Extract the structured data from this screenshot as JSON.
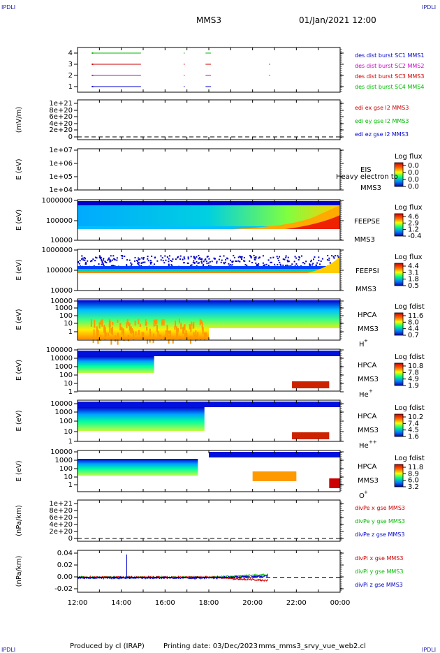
{
  "header": {
    "corner_tl": "IPDLI",
    "corner_tr": "IPDLI",
    "corner_bl": "IPDLI",
    "corner_br": "IPDLI",
    "mission": "MMS3",
    "datetime": "01/Jan/2021 12:00"
  },
  "footer": {
    "produced": "Produced by cl (IRAP)",
    "printing": "Printing date: 03/Dec/2023",
    "script": "mms_mms3_srvy_vue_web2.cl"
  },
  "chart_data": {
    "type": "stacked-timeseries",
    "x_ticks": [
      "12:00",
      "14:00",
      "16:00",
      "18:00",
      "20:00",
      "22:00",
      "00:00"
    ],
    "x_range_hours": [
      12,
      24
    ],
    "panels": [
      {
        "id": "burst",
        "ytick_labels": [
          "4",
          "3",
          "2",
          "1"
        ],
        "legend": [
          {
            "text": "des dist burst SC1 MMS1",
            "color": "#0000cc"
          },
          {
            "text": "des dist burst SC2 MMS2",
            "color": "#cc00cc"
          },
          {
            "text": "des dist burst SC3 MMS3",
            "color": "#cc0000"
          },
          {
            "text": "des dist burst SC4 MMS4",
            "color": "#00bb00"
          }
        ],
        "intervals": [
          {
            "sc": 4,
            "color": "#00bb00",
            "t": [
              [
                12.7,
                14.9
              ],
              [
                16.85,
                16.9
              ],
              [
                17.85,
                18.1
              ]
            ]
          },
          {
            "sc": 3,
            "color": "#cc0000",
            "t": [
              [
                12.7,
                14.9
              ],
              [
                16.85,
                16.9
              ],
              [
                17.85,
                18.1
              ],
              [
                20.75,
                20.8
              ]
            ]
          },
          {
            "sc": 2,
            "color": "#cc00cc",
            "t": [
              [
                12.7,
                14.9
              ],
              [
                16.85,
                16.9
              ],
              [
                17.85,
                18.1
              ],
              [
                20.75,
                20.8
              ]
            ]
          },
          {
            "sc": 1,
            "color": "#0000cc",
            "t": [
              [
                12.7,
                14.9
              ],
              [
                16.85,
                16.9
              ],
              [
                17.85,
                18.1
              ]
            ]
          }
        ]
      },
      {
        "id": "edi",
        "ylabel": "(mV/m)",
        "ytick_labels": [
          "1e+21",
          "8e+20",
          "6e+20",
          "4e+20",
          "2e+20",
          "0"
        ],
        "legend": [
          {
            "text": "edi ex gse l2 MMS3",
            "color": "#cc0000"
          },
          {
            "text": "edi ey gse l2 MMS3",
            "color": "#00bb00"
          },
          {
            "text": "edi ez gse l2 MMS3",
            "color": "#0000cc"
          }
        ]
      },
      {
        "id": "eis",
        "ylabel": "E (eV)",
        "ytick_labels": [
          "1e+07",
          "1e+06",
          "1e+05",
          "1e+04"
        ],
        "name": "EIS",
        "name2": "MMS3",
        "overlay_text": "Heavy electron to",
        "cbar_title": "Log flux",
        "cbar_ticks": [
          "0.0",
          "0.0",
          "0.0",
          "0.0"
        ]
      },
      {
        "id": "feepse",
        "ylabel": "E (eV)",
        "ytick_labels": [
          "1000000",
          "100000",
          "10000"
        ],
        "name": "FEEPSE",
        "name2": "MMS3",
        "cbar_title": "Log flux",
        "cbar_ticks": [
          "4.6",
          "2.9",
          "1.2",
          "-0.4"
        ]
      },
      {
        "id": "feepsi",
        "ylabel": "E (eV)",
        "ytick_labels": [
          "1000000",
          "100000",
          "10000"
        ],
        "name": "FEEPSI",
        "name2": "MMS3",
        "cbar_title": "Log flux",
        "cbar_ticks": [
          "4.4",
          "3.1",
          "1.8",
          "0.5"
        ]
      },
      {
        "id": "hpca_h",
        "ylabel": "E (eV)",
        "ytick_labels": [
          "10000",
          "1000",
          "100",
          "10",
          "1"
        ],
        "name": "HPCA",
        "name2": "MMS3",
        "species": "H",
        "charge": "+",
        "cbar_title": "Log fdist",
        "cbar_ticks": [
          "11.6",
          "8.0",
          "4.4",
          "0.7"
        ]
      },
      {
        "id": "hpca_he",
        "ylabel": "E (eV)",
        "ytick_labels": [
          "100000",
          "10000",
          "1000",
          "100",
          "10",
          "1"
        ],
        "name": "HPCA",
        "name2": "MMS3",
        "species": "He",
        "charge": "+",
        "cbar_title": "Log fdist",
        "cbar_ticks": [
          "10.8",
          "7.8",
          "4.9",
          "1.9"
        ]
      },
      {
        "id": "hpca_hepp",
        "ylabel": "E (eV)",
        "ytick_labels": [
          "10000",
          "1000",
          "100",
          "10",
          "1"
        ],
        "name": "HPCA",
        "name2": "MMS3",
        "species": "He",
        "charge": "++",
        "cbar_title": "Log fdist",
        "cbar_ticks": [
          "10.2",
          "7.4",
          "4.5",
          "1.6"
        ]
      },
      {
        "id": "hpca_o",
        "ylabel": "E (eV)",
        "ytick_labels": [
          "10000",
          "1000",
          "100",
          "10",
          "1"
        ],
        "name": "HPCA",
        "name2": "MMS3",
        "species": "O",
        "charge": "+",
        "cbar_title": "Log fdist",
        "cbar_ticks": [
          "11.8",
          "8.9",
          "6.0",
          "3.2"
        ]
      },
      {
        "id": "divpe",
        "ylabel": "(nPa/km)",
        "ytick_labels": [
          "1e+21",
          "8e+20",
          "6e+20",
          "4e+20",
          "2e+20",
          "0"
        ],
        "legend": [
          {
            "text": "divPe x gse MMS3",
            "color": "#cc0000"
          },
          {
            "text": "divPe y gse MMS3",
            "color": "#00bb00"
          },
          {
            "text": "divPe z gse MMS3",
            "color": "#0000cc"
          }
        ]
      },
      {
        "id": "divpi",
        "ylabel": "(nPa/km)",
        "ytick_labels": [
          "0.04",
          "0.02",
          "0.00",
          "-0.02"
        ],
        "ylim": [
          -0.025,
          0.045
        ],
        "legend": [
          {
            "text": "divPi x gse MMS3",
            "color": "#cc0000"
          },
          {
            "text": "divPi y gse MMS3",
            "color": "#00bb00"
          },
          {
            "text": "divPi z gse MMS3",
            "color": "#0000cc"
          }
        ]
      }
    ]
  }
}
